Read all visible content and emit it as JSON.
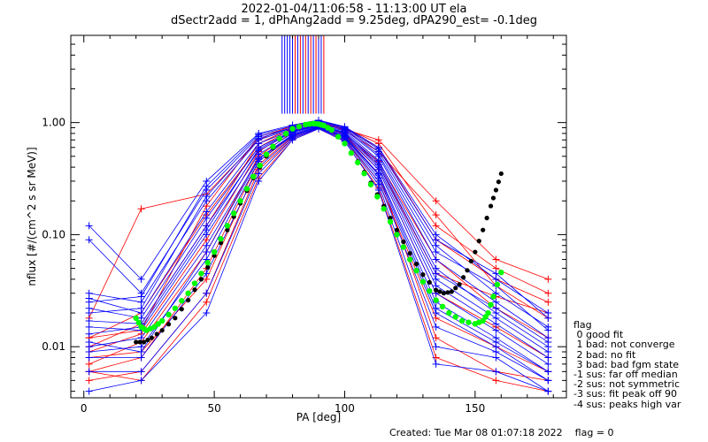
{
  "header": {
    "title_line1": "2022-01-04/11:06:58 - 11:13:00 UT ela",
    "title_line2": "dSectr2add = 1, dPhAng2add = 9.25deg, dPA290_est=  -0.1deg"
  },
  "footer": {
    "created": "Created: Tue Mar 08 01:07:18 2022",
    "flag": "flag = 0"
  },
  "legend": {
    "title": "flag",
    "items": [
      " 0 good fit",
      " 1 bad: not converge",
      " 2 bad: no fit",
      " 3 bad: bad fgm state",
      "-1 sus: far off median",
      "-2 sus: not symmetric",
      "-3 sus: fit peak off 90",
      "-4 sus: peaks high var"
    ]
  },
  "chart_data": {
    "type": "line",
    "xlabel": "PA [deg]",
    "ylabel": "nflux [#/(cm^2 s sr MeV)]",
    "xlim": [
      -5,
      185
    ],
    "ylim": [
      0.0035,
      6.0
    ],
    "yscale": "log",
    "x_ticks": [
      0,
      50,
      100,
      150
    ],
    "x_tick_labels": [
      "0",
      "50",
      "100",
      "150"
    ],
    "y_ticks": [
      0.01,
      0.1,
      1.0
    ],
    "y_tick_labels": [
      "0.01",
      "0.10",
      "1.00"
    ],
    "colors": {
      "red": "#ff0000",
      "blue": "#0000ff",
      "green": "#00ff00",
      "black": "#000000"
    },
    "pa_bins": [
      2,
      22,
      47,
      67,
      80,
      90,
      100,
      113,
      135,
      158,
      178
    ],
    "series": [
      {
        "color": "red",
        "values": [
          0.018,
          0.17,
          0.23,
          0.7,
          0.95,
          1.05,
          0.9,
          0.65,
          0.12,
          0.05,
          0.03
        ]
      },
      {
        "color": "red",
        "values": [
          0.012,
          0.02,
          0.15,
          0.6,
          0.88,
          1.0,
          0.85,
          0.55,
          0.15,
          0.035,
          0.018
        ]
      },
      {
        "color": "red",
        "values": [
          0.009,
          0.013,
          0.09,
          0.55,
          0.85,
          0.95,
          0.8,
          0.45,
          0.06,
          0.022,
          0.012
        ]
      },
      {
        "color": "red",
        "values": [
          0.006,
          0.008,
          0.05,
          0.45,
          0.78,
          0.92,
          0.76,
          0.38,
          0.03,
          0.015,
          0.008
        ]
      },
      {
        "color": "red",
        "values": [
          0.005,
          0.006,
          0.03,
          0.38,
          0.72,
          0.9,
          0.7,
          0.3,
          0.018,
          0.01,
          0.006
        ]
      },
      {
        "color": "red",
        "values": [
          0.007,
          0.011,
          0.07,
          0.5,
          0.82,
          0.97,
          0.78,
          0.42,
          0.045,
          0.028,
          0.02
        ]
      },
      {
        "color": "red",
        "values": [
          0.01,
          0.016,
          0.12,
          0.65,
          0.9,
          1.02,
          0.88,
          0.6,
          0.09,
          0.04,
          0.025
        ]
      },
      {
        "color": "red",
        "values": [
          0.008,
          0.009,
          0.04,
          0.42,
          0.75,
          0.93,
          0.72,
          0.35,
          0.012,
          0.006,
          0.005
        ]
      },
      {
        "color": "red",
        "values": [
          0.006,
          0.005,
          0.025,
          0.32,
          0.7,
          0.88,
          0.68,
          0.26,
          0.008,
          0.005,
          0.004
        ]
      },
      {
        "color": "red",
        "values": [
          0.012,
          0.014,
          0.18,
          0.75,
          0.92,
          1.0,
          0.87,
          0.7,
          0.2,
          0.06,
          0.04
        ]
      },
      {
        "color": "blue",
        "values": [
          0.12,
          0.04,
          0.3,
          0.8,
          0.95,
          1.05,
          0.92,
          0.6,
          0.1,
          0.04,
          0.02
        ]
      },
      {
        "color": "blue",
        "values": [
          0.09,
          0.03,
          0.25,
          0.75,
          0.9,
          1.02,
          0.9,
          0.55,
          0.08,
          0.03,
          0.015
        ]
      },
      {
        "color": "blue",
        "values": [
          0.03,
          0.025,
          0.2,
          0.7,
          0.88,
          0.98,
          0.86,
          0.5,
          0.06,
          0.025,
          0.012
        ]
      },
      {
        "color": "blue",
        "values": [
          0.027,
          0.02,
          0.16,
          0.65,
          0.86,
          0.96,
          0.84,
          0.46,
          0.05,
          0.02,
          0.01
        ]
      },
      {
        "color": "blue",
        "values": [
          0.022,
          0.018,
          0.14,
          0.6,
          0.84,
          0.95,
          0.82,
          0.42,
          0.04,
          0.018,
          0.009
        ]
      },
      {
        "color": "blue",
        "values": [
          0.017,
          0.016,
          0.12,
          0.56,
          0.82,
          0.94,
          0.8,
          0.4,
          0.035,
          0.016,
          0.008
        ]
      },
      {
        "color": "blue",
        "values": [
          0.015,
          0.014,
          0.1,
          0.52,
          0.8,
          0.93,
          0.78,
          0.38,
          0.03,
          0.014,
          0.007
        ]
      },
      {
        "color": "blue",
        "values": [
          0.01,
          0.012,
          0.08,
          0.48,
          0.78,
          0.92,
          0.76,
          0.35,
          0.025,
          0.012,
          0.006
        ]
      },
      {
        "color": "blue",
        "values": [
          0.009,
          0.01,
          0.06,
          0.45,
          0.76,
          0.91,
          0.74,
          0.32,
          0.02,
          0.01,
          0.005
        ]
      },
      {
        "color": "blue",
        "values": [
          0.008,
          0.008,
          0.045,
          0.4,
          0.74,
          0.9,
          0.72,
          0.3,
          0.015,
          0.009,
          0.005
        ]
      },
      {
        "color": "blue",
        "values": [
          0.006,
          0.006,
          0.03,
          0.35,
          0.72,
          0.89,
          0.7,
          0.28,
          0.01,
          0.008,
          0.004
        ]
      },
      {
        "color": "blue",
        "values": [
          0.004,
          0.005,
          0.02,
          0.3,
          0.7,
          0.88,
          0.68,
          0.25,
          0.007,
          0.006,
          0.004
        ]
      },
      {
        "color": "blue",
        "values": [
          0.02,
          0.022,
          0.22,
          0.72,
          0.9,
          1.0,
          0.88,
          0.52,
          0.07,
          0.035,
          0.014
        ]
      },
      {
        "color": "blue",
        "values": [
          0.013,
          0.015,
          0.11,
          0.58,
          0.83,
          0.95,
          0.81,
          0.44,
          0.045,
          0.022,
          0.011
        ]
      },
      {
        "color": "blue",
        "values": [
          0.025,
          0.028,
          0.27,
          0.78,
          0.93,
          1.04,
          0.91,
          0.58,
          0.09,
          0.045,
          0.018
        ]
      },
      {
        "color": "blue",
        "values": [
          0.011,
          0.009,
          0.07,
          0.47,
          0.77,
          0.91,
          0.75,
          0.34,
          0.022,
          0.011,
          0.006
        ]
      }
    ],
    "fit_green": {
      "color": "green",
      "x": [
        20,
        22,
        24,
        27,
        30,
        35,
        40,
        45,
        50,
        55,
        60,
        65,
        70,
        75,
        80,
        85,
        88,
        90,
        92,
        95,
        100,
        105,
        110,
        115,
        120,
        125,
        130,
        135,
        140,
        145,
        150,
        153,
        155,
        157,
        160
      ],
      "y": [
        0.018,
        0.015,
        0.014,
        0.015,
        0.017,
        0.022,
        0.03,
        0.045,
        0.07,
        0.12,
        0.2,
        0.33,
        0.52,
        0.72,
        0.88,
        0.96,
        0.98,
        0.97,
        0.94,
        0.86,
        0.65,
        0.44,
        0.28,
        0.17,
        0.1,
        0.06,
        0.038,
        0.026,
        0.02,
        0.017,
        0.016,
        0.017,
        0.02,
        0.028,
        0.046
      ]
    },
    "fit_black": {
      "color": "black",
      "x": [
        20,
        23,
        26,
        30,
        35,
        40,
        45,
        50,
        55,
        60,
        65,
        70,
        75,
        80,
        85,
        88,
        90,
        92,
        95,
        100,
        105,
        110,
        115,
        120,
        125,
        130,
        135,
        138,
        141,
        144,
        147,
        150,
        153,
        156,
        158,
        160
      ],
      "y": [
        0.011,
        0.011,
        0.012,
        0.014,
        0.018,
        0.026,
        0.04,
        0.065,
        0.11,
        0.19,
        0.32,
        0.5,
        0.71,
        0.87,
        0.96,
        0.98,
        0.97,
        0.94,
        0.86,
        0.65,
        0.45,
        0.29,
        0.18,
        0.11,
        0.068,
        0.044,
        0.032,
        0.03,
        0.031,
        0.036,
        0.048,
        0.07,
        0.11,
        0.18,
        0.25,
        0.35
      ]
    },
    "spikes": [
      {
        "color": "blue",
        "x": [
          76,
          77,
          78,
          79,
          80,
          82,
          84,
          86,
          88,
          90,
          91
        ]
      },
      {
        "color": "red",
        "x": [
          81,
          83,
          85,
          87,
          89,
          92
        ]
      }
    ]
  }
}
